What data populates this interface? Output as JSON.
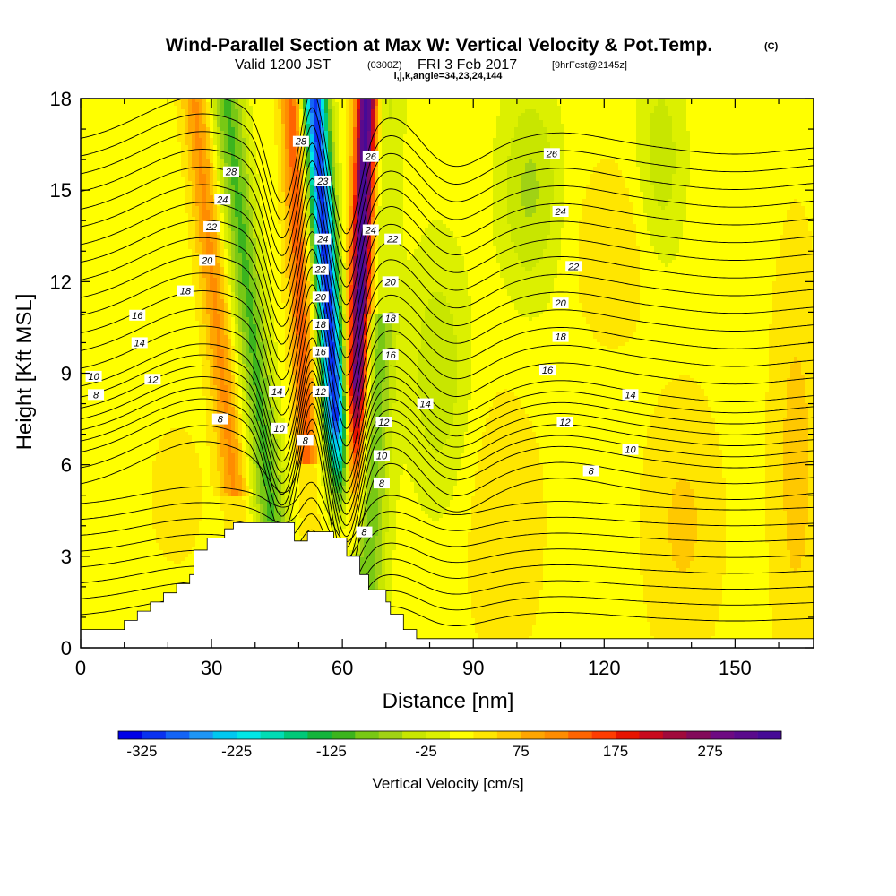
{
  "title": {
    "main": "Wind-Parallel Section at Max W: Vertical Velocity & Pot.Temp.",
    "mark": "(C)"
  },
  "subtitle": {
    "valid": "Valid 1200 JST",
    "utc": "(0300Z)",
    "date": "FRI 3 Feb 2017",
    "forecast": "[9hrFcst@2145z]",
    "indices": "i,j,k,angle=34,23,24,144"
  },
  "chart_data": {
    "type": "heatmap",
    "xlabel": "Distance [nm]",
    "ylabel": "Height [Kft MSL]",
    "xlim": [
      0,
      168
    ],
    "ylim": [
      0,
      18
    ],
    "x_ticks": [
      0,
      30,
      60,
      90,
      120,
      150
    ],
    "y_ticks": [
      0,
      3,
      6,
      9,
      12,
      15,
      18
    ],
    "colorbar": {
      "label": "Vertical Velocity [cm/s]",
      "min": -350,
      "max": 350,
      "step": 25,
      "tick_labels": [
        -325,
        -225,
        -125,
        -25,
        75,
        175,
        275
      ],
      "colors": [
        "#0000e6",
        "#0a32f0",
        "#1464f5",
        "#1e96f5",
        "#00c8f0",
        "#00e6e6",
        "#00dcb4",
        "#00c878",
        "#14b43c",
        "#3cb41e",
        "#78c814",
        "#a0d214",
        "#c8e600",
        "#dcf000",
        "#ffff00",
        "#ffe600",
        "#ffc800",
        "#ffa500",
        "#ff8c00",
        "#ff6400",
        "#ff3c00",
        "#e61400",
        "#c80a1e",
        "#a00a3c",
        "#820a5a",
        "#6e0a82",
        "#5a0a8c",
        "#460a96"
      ]
    },
    "terrain_kft": [
      [
        0,
        0.6
      ],
      [
        10,
        0.6
      ],
      [
        10,
        0.9
      ],
      [
        13,
        0.9
      ],
      [
        13,
        1.2
      ],
      [
        16,
        1.2
      ],
      [
        16,
        1.5
      ],
      [
        19,
        1.5
      ],
      [
        19,
        1.8
      ],
      [
        22,
        1.8
      ],
      [
        22,
        2.1
      ],
      [
        25,
        2.1
      ],
      [
        25,
        2.4
      ],
      [
        26,
        2.4
      ],
      [
        26,
        3.2
      ],
      [
        29,
        3.2
      ],
      [
        29,
        3.6
      ],
      [
        33,
        3.6
      ],
      [
        33,
        3.9
      ],
      [
        35,
        3.9
      ],
      [
        35,
        4.1
      ],
      [
        49,
        4.1
      ],
      [
        49,
        3.5
      ],
      [
        52,
        3.5
      ],
      [
        52,
        3.8
      ],
      [
        58,
        3.8
      ],
      [
        58,
        3.6
      ],
      [
        61,
        3.6
      ],
      [
        61,
        3.0
      ],
      [
        64,
        3.0
      ],
      [
        64,
        2.4
      ],
      [
        66,
        2.4
      ],
      [
        66,
        1.9
      ],
      [
        70,
        1.9
      ],
      [
        70,
        1.5
      ],
      [
        71,
        1.5
      ],
      [
        71,
        1.1
      ],
      [
        74,
        1.1
      ],
      [
        74,
        0.6
      ],
      [
        77,
        0.6
      ],
      [
        77,
        0.3
      ],
      [
        168,
        0.3
      ]
    ],
    "theta_levels_c": [
      -2,
      -1,
      0,
      1,
      2,
      3,
      4,
      5,
      6,
      7,
      8,
      9,
      10,
      11,
      12,
      13,
      14,
      15,
      16,
      17,
      18,
      19,
      20,
      21,
      22,
      23,
      24,
      25,
      26,
      27,
      28
    ],
    "contour_labels": [
      {
        "text": "28",
        "x": 50.5,
        "y": 16.6
      },
      {
        "text": "28",
        "x": 34.5,
        "y": 15.6
      },
      {
        "text": "24",
        "x": 32.5,
        "y": 14.7
      },
      {
        "text": "22",
        "x": 30,
        "y": 13.8
      },
      {
        "text": "20",
        "x": 29,
        "y": 12.7
      },
      {
        "text": "18",
        "x": 24,
        "y": 11.7
      },
      {
        "text": "16",
        "x": 13,
        "y": 10.9
      },
      {
        "text": "14",
        "x": 13.5,
        "y": 10
      },
      {
        "text": "12",
        "x": 16.5,
        "y": 8.8
      },
      {
        "text": "10",
        "x": 3,
        "y": 8.9
      },
      {
        "text": "8",
        "x": 3.5,
        "y": 8.3
      },
      {
        "text": "8",
        "x": 32,
        "y": 7.5
      },
      {
        "text": "23",
        "x": 55.5,
        "y": 15.3
      },
      {
        "text": "24",
        "x": 55.5,
        "y": 13.4
      },
      {
        "text": "22",
        "x": 55,
        "y": 12.4
      },
      {
        "text": "20",
        "x": 55,
        "y": 11.5
      },
      {
        "text": "18",
        "x": 55,
        "y": 10.6
      },
      {
        "text": "16",
        "x": 55,
        "y": 9.7
      },
      {
        "text": "12",
        "x": 55,
        "y": 8.4
      },
      {
        "text": "14",
        "x": 45,
        "y": 8.4
      },
      {
        "text": "10",
        "x": 45.5,
        "y": 7.2
      },
      {
        "text": "8",
        "x": 51.5,
        "y": 6.8
      },
      {
        "text": "26",
        "x": 66.5,
        "y": 16.1
      },
      {
        "text": "24",
        "x": 66.5,
        "y": 13.7
      },
      {
        "text": "22",
        "x": 71.5,
        "y": 13.4
      },
      {
        "text": "20",
        "x": 71,
        "y": 12.0
      },
      {
        "text": "18",
        "x": 71,
        "y": 10.8
      },
      {
        "text": "16",
        "x": 71,
        "y": 9.6
      },
      {
        "text": "14",
        "x": 79,
        "y": 8.0
      },
      {
        "text": "12",
        "x": 69.5,
        "y": 7.4
      },
      {
        "text": "10",
        "x": 69,
        "y": 6.3
      },
      {
        "text": "8",
        "x": 69,
        "y": 5.4
      },
      {
        "text": "8",
        "x": 65,
        "y": 3.8
      },
      {
        "text": "26",
        "x": 108,
        "y": 16.2
      },
      {
        "text": "24",
        "x": 110,
        "y": 14.3
      },
      {
        "text": "22",
        "x": 113,
        "y": 12.5
      },
      {
        "text": "20",
        "x": 110,
        "y": 11.3
      },
      {
        "text": "18",
        "x": 110,
        "y": 10.2
      },
      {
        "text": "16",
        "x": 107,
        "y": 9.1
      },
      {
        "text": "14",
        "x": 126,
        "y": 8.3
      },
      {
        "text": "12",
        "x": 111,
        "y": 7.4
      },
      {
        "text": "10",
        "x": 126,
        "y": 6.5
      },
      {
        "text": "8",
        "x": 117,
        "y": 5.8
      }
    ]
  }
}
